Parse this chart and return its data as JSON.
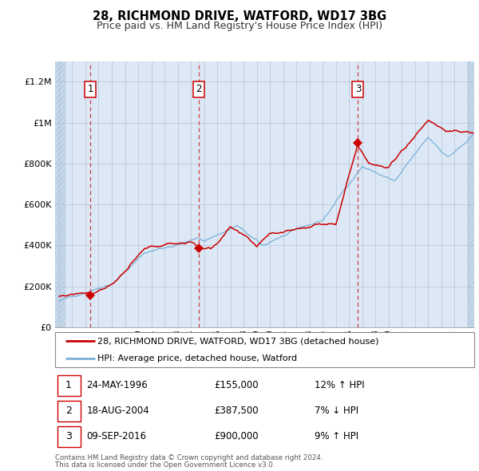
{
  "title": "28, RICHMOND DRIVE, WATFORD, WD17 3BG",
  "subtitle": "Price paid vs. HM Land Registry's House Price Index (HPI)",
  "transactions": [
    {
      "label": "1",
      "date": "24-MAY-1996",
      "price": 155000,
      "pct": "12%",
      "dir": "↑"
    },
    {
      "label": "2",
      "date": "18-AUG-2004",
      "price": 387500,
      "pct": "7%",
      "dir": "↓"
    },
    {
      "label": "3",
      "date": "09-SEP-2016",
      "price": 900000,
      "pct": "9%",
      "dir": "↑"
    }
  ],
  "transaction_years": [
    1996.38,
    2004.62,
    2016.68
  ],
  "transaction_prices": [
    155000,
    387500,
    900000
  ],
  "legend_property": "28, RICHMOND DRIVE, WATFORD, WD17 3BG (detached house)",
  "legend_hpi": "HPI: Average price, detached house, Watford",
  "footnote1": "Contains HM Land Registry data © Crown copyright and database right 2024.",
  "footnote2": "This data is licensed under the Open Government Licence v3.0.",
  "property_line_color": "#cc0000",
  "hpi_line_color": "#7ab0d8",
  "background_plot": "#dce8f5",
  "background_hatch_color": "#c5d8ea",
  "grid_color": "#b0b8cc",
  "vline_color": "#cc2222",
  "marker_color": "#cc0000",
  "ylim": [
    0,
    1300000
  ],
  "yticks": [
    0,
    200000,
    400000,
    600000,
    800000,
    1000000,
    1200000
  ],
  "ytick_labels": [
    "£0",
    "£200K",
    "£400K",
    "£600K",
    "£800K",
    "£1M",
    "£1.2M"
  ],
  "xstart": 1993.7,
  "xend": 2025.5
}
